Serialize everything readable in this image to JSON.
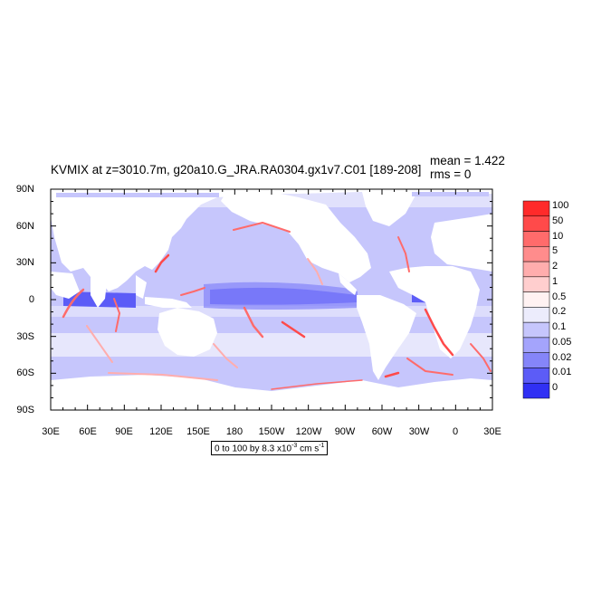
{
  "title": "KVMIX at z=3010.7m, g20a10.G_JRA.RA0304.gx1v7.C01 [189-208]",
  "stats": {
    "mean": "mean = 1.422",
    "rms": "rms = 0"
  },
  "lat_labels": [
    "90N",
    "60N",
    "30N",
    "0",
    "30S",
    "60S",
    "90S"
  ],
  "lon_labels": [
    "30E",
    "60E",
    "90E",
    "120E",
    "150E",
    "180",
    "150W",
    "120W",
    "90W",
    "60W",
    "30W",
    "0",
    "30E"
  ],
  "units": {
    "prefix": "0 to 100 by 8.3 x10",
    "exp1": "-3",
    "mid": " cm s",
    "exp2": "-1"
  },
  "labelbar": {
    "labels": [
      "100",
      "50",
      "10",
      "5",
      "2",
      "1",
      "0.5",
      "0.2",
      "0.1",
      "0.05",
      "0.02",
      "0.01",
      "0"
    ],
    "colors": [
      "#ff2a2a",
      "#ff4a4a",
      "#ff6b6b",
      "#ff8c8c",
      "#ffadad",
      "#ffcece",
      "#fff2f2",
      "#ececfc",
      "#c6c6fc",
      "#a4a4fc",
      "#8585f9",
      "#5c5cf7",
      "#3030f4"
    ]
  },
  "map_colors": {
    "land": "#ffffff",
    "ocean_base": "#c6c6fc",
    "ocean_light": "#ececfc",
    "equatorial": "#5c5cf7",
    "equatorial_mid": "#8585f9",
    "boundary_red": "#ff6b6b",
    "boundary_pink": "#ffadad"
  }
}
